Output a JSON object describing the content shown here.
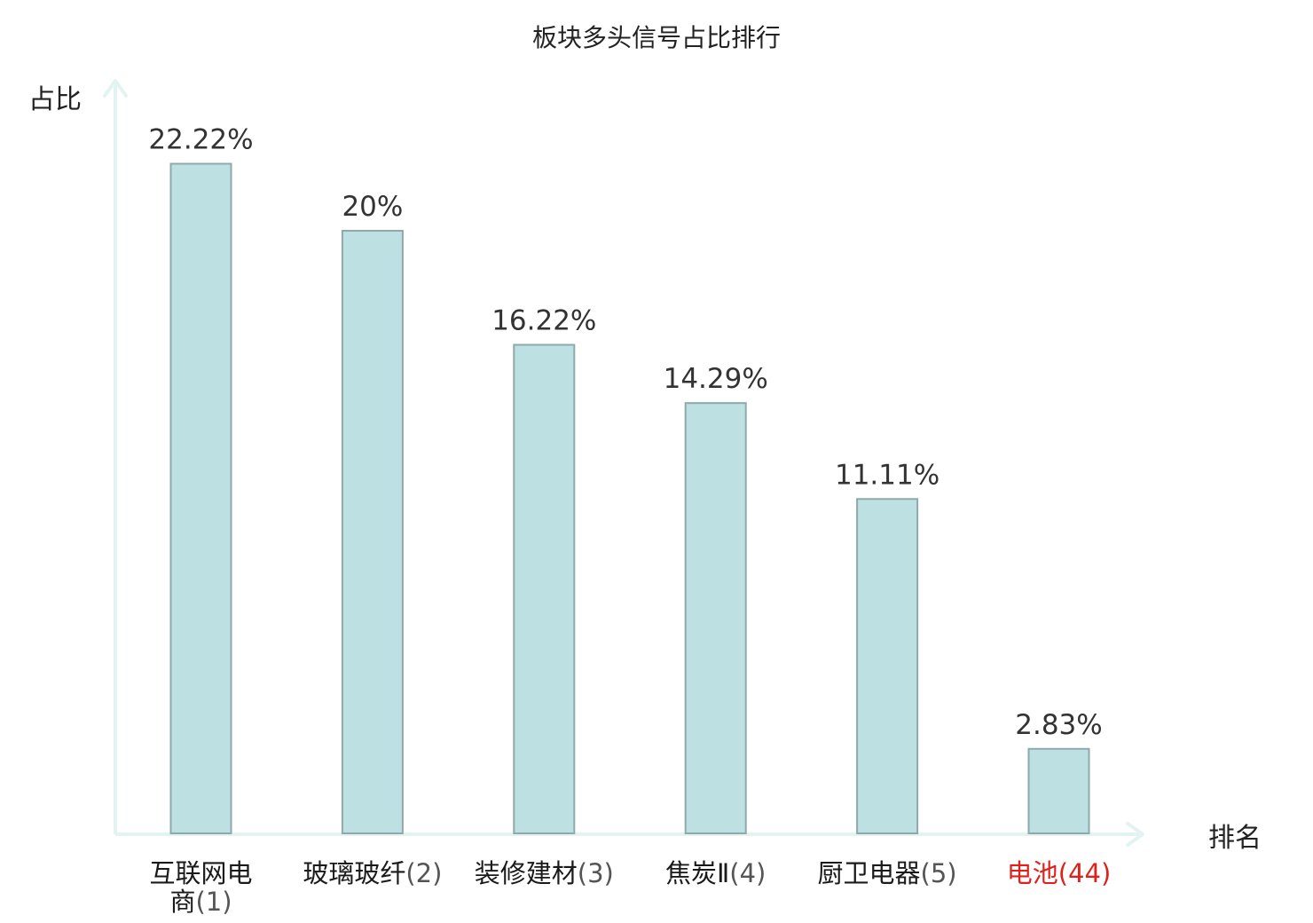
{
  "chart_data": {
    "type": "bar",
    "title": "板块多头信号占比排行",
    "ylabel": "占比",
    "xlabel": "排名",
    "categories": [
      {
        "lines": [
          "互联网电",
          "商"
        ],
        "rank": "(1)"
      },
      {
        "lines": [
          "玻璃玻纤"
        ],
        "rank": "(2)"
      },
      {
        "lines": [
          "装修建材"
        ],
        "rank": "(3)"
      },
      {
        "lines": [
          "焦炭Ⅱ"
        ],
        "rank": "(4)"
      },
      {
        "lines": [
          "厨卫电器"
        ],
        "rank": "(5)"
      },
      {
        "lines": [
          "电池"
        ],
        "rank": "(44)",
        "highlight": true
      }
    ],
    "values": [
      22.22,
      20,
      16.22,
      14.29,
      11.11,
      2.83
    ],
    "value_labels": [
      "22.22%",
      "20%",
      "16.22%",
      "14.29%",
      "11.11%",
      "2.83%"
    ],
    "ylim": [
      0,
      25
    ],
    "grid": false,
    "colors": {
      "bar_fill": "#bde0e3",
      "bar_stroke": "#8fa9ab",
      "axis": "#e3f3f1",
      "highlight": "#e0201b",
      "rank_text": "#555555"
    }
  }
}
